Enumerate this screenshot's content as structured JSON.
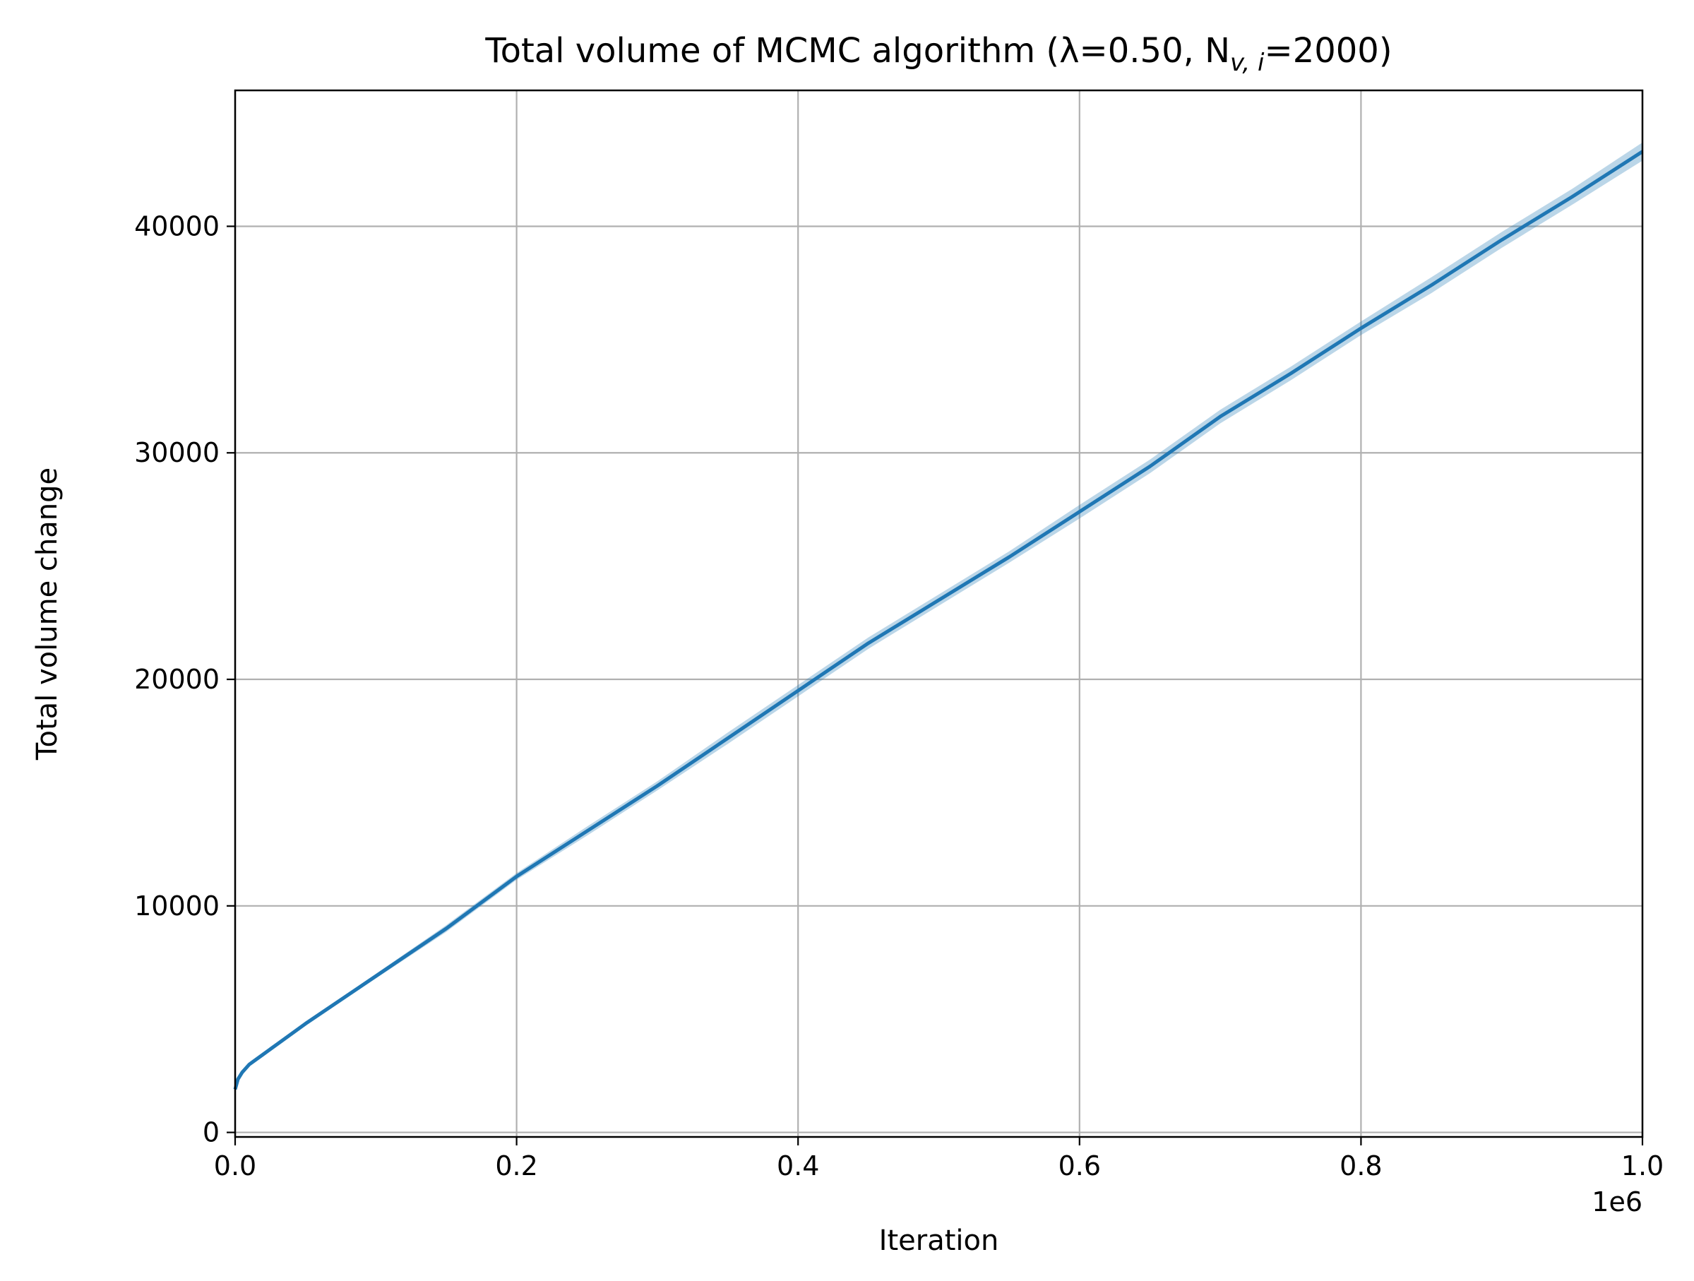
{
  "chart_data": {
    "type": "line",
    "title": "Total volume of MCMC algorithm (λ=0.50, N",
    "title_subscript": "v, i",
    "title_suffix": "=2000)",
    "xlabel": "Iteration",
    "ylabel": "Total volume change",
    "x_offset_label": "1e6",
    "xlim": [
      0.0,
      1.0
    ],
    "ylim": [
      -200,
      46000
    ],
    "x_ticks": [
      0.0,
      0.2,
      0.4,
      0.6,
      0.8,
      1.0
    ],
    "x_tick_labels": [
      "0.0",
      "0.2",
      "0.4",
      "0.6",
      "0.8",
      "1.0"
    ],
    "y_ticks": [
      0,
      10000,
      20000,
      30000,
      40000
    ],
    "y_tick_labels": [
      "0",
      "10000",
      "20000",
      "30000",
      "40000"
    ],
    "grid": true,
    "x_scale_factor": 1000000,
    "series": [
      {
        "color": "#1f77b4",
        "band_color": "#1f77b4",
        "band_opacity": 0.3,
        "x": [
          0.0,
          0.002,
          0.005,
          0.01,
          0.02,
          0.03,
          0.05,
          0.1,
          0.15,
          0.2,
          0.25,
          0.3,
          0.35,
          0.4,
          0.45,
          0.5,
          0.55,
          0.6,
          0.65,
          0.7,
          0.75,
          0.8,
          0.85,
          0.9,
          0.95,
          1.0
        ],
        "y": [
          1900,
          2350,
          2650,
          3000,
          3450,
          3900,
          4800,
          6900,
          9000,
          11300,
          13300,
          15300,
          17400,
          19500,
          21600,
          23500,
          25400,
          27400,
          29400,
          31600,
          33500,
          35500,
          37400,
          39400,
          41300,
          43300
        ],
        "y_lower": [
          1800,
          2250,
          2550,
          2900,
          3350,
          3800,
          4700,
          6800,
          8850,
          11150,
          13100,
          15100,
          17150,
          19250,
          21350,
          23250,
          25150,
          27100,
          29100,
          31300,
          33200,
          35200,
          37050,
          39050,
          40950,
          42900
        ],
        "y_upper": [
          2000,
          2450,
          2750,
          3100,
          3550,
          4000,
          4900,
          7000,
          9150,
          11450,
          13500,
          15500,
          17650,
          19750,
          21850,
          23750,
          25650,
          27700,
          29700,
          31900,
          33800,
          35800,
          37750,
          39750,
          41650,
          43700
        ]
      }
    ]
  }
}
